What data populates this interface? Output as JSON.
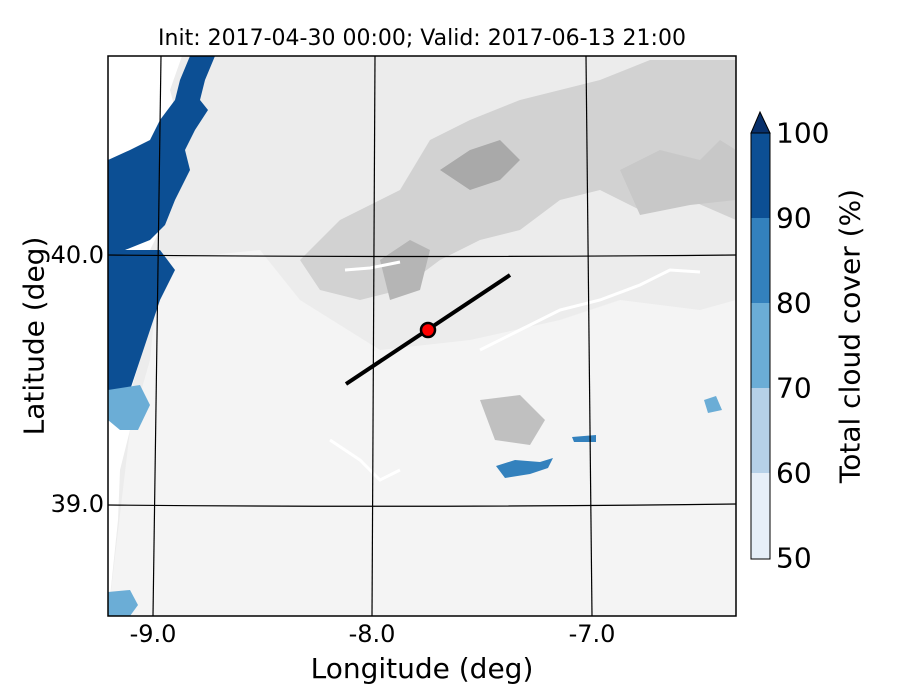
{
  "title": "Init: 2017-04-30 00:00; Valid: 2017-06-13 21:00",
  "xlabel": "Longitude (deg)",
  "ylabel": "Latitude (deg)",
  "x_ticks": [
    "-9.0",
    "-8.0",
    "-7.0"
  ],
  "y_ticks": [
    "40.0",
    "39.0"
  ],
  "colorbar": {
    "label": "Total cloud cover (%)",
    "ticks": [
      "50",
      "60",
      "70",
      "80",
      "90",
      "100"
    ],
    "colors": [
      "#e6eff8",
      "#b6d1e8",
      "#6badd6",
      "#3381bd",
      "#0c4f94"
    ],
    "extend_color": "#08306b"
  },
  "marker": {
    "lon": -7.75,
    "lat": 39.68,
    "fill": "#ff0000"
  },
  "transect": {
    "start": [
      -8.12,
      39.47
    ],
    "end": [
      -7.37,
      39.92
    ]
  },
  "chart_data": {
    "type": "heatmap",
    "title": "Init: 2017-04-30 00:00; Valid: 2017-06-13 21:00",
    "xlabel": "Longitude (deg)",
    "ylabel": "Latitude (deg)",
    "xlim": [
      -9.2,
      -6.35
    ],
    "ylim": [
      38.55,
      40.8
    ],
    "variable": "Total cloud cover (%)",
    "levels": [
      50,
      60,
      70,
      80,
      90,
      100
    ],
    "grid": true
  }
}
